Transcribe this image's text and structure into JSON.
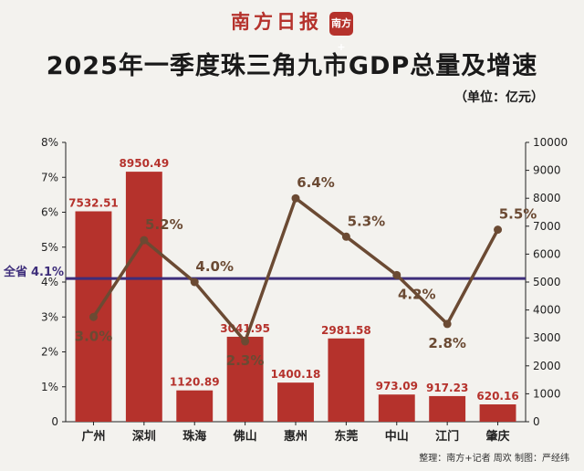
{
  "header": {
    "masthead": "南方日报",
    "seal": "南方+",
    "title": "2025年一季度珠三角九市GDP总量及增速",
    "unit": "（单位：亿元）"
  },
  "footer": {
    "credit": "整理：南方+记者 周欢  制图：严经纬"
  },
  "colors": {
    "bar": "#b5322c",
    "line": "#6b4a33",
    "province_line": "#3d2d7a",
    "bar_label": "#b5322c",
    "line_label": "#6b4a33"
  },
  "chart_data": {
    "type": "bar",
    "categories": [
      "广州",
      "深圳",
      "珠海",
      "佛山",
      "惠州",
      "东莞",
      "中山",
      "江门",
      "肇庆"
    ],
    "series": [
      {
        "type": "bar",
        "axis": "right",
        "values": [
          7532.51,
          8950.49,
          1120.89,
          3041.95,
          1400.18,
          2981.58,
          973.09,
          917.23,
          620.16
        ],
        "labels": [
          "7532.51",
          "8950.49",
          "1120.89",
          "3041.95",
          "1400.18",
          "2981.58",
          "973.09",
          "917.23",
          "620.16"
        ]
      },
      {
        "type": "line",
        "axis": "left",
        "values": [
          3.0,
          5.2,
          4.0,
          2.3,
          6.4,
          5.3,
          4.2,
          2.8,
          5.5
        ],
        "labels": [
          "3.0%",
          "5.2%",
          "4.0%",
          "2.3%",
          "6.4%",
          "5.3%",
          "4.2%",
          "2.8%",
          "5.5%"
        ]
      }
    ],
    "reference_line": {
      "label": "全省",
      "value_label": "4.1%",
      "value": 4.1
    },
    "y_left": {
      "ticks": [
        "0",
        "1%",
        "2%",
        "3%",
        "4%",
        "5%",
        "6%",
        "7%",
        "8%"
      ],
      "range": [
        0,
        8
      ]
    },
    "y_right": {
      "ticks": [
        "0",
        "1000",
        "2000",
        "3000",
        "4000",
        "5000",
        "6000",
        "7000",
        "8000",
        "9000",
        "10000"
      ],
      "range": [
        0,
        10000
      ]
    },
    "grid": false,
    "legend": "none"
  }
}
